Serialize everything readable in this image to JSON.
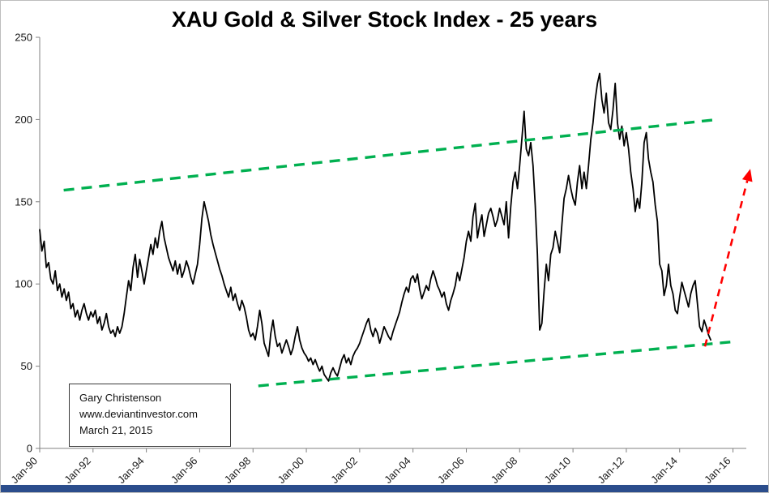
{
  "colors": {
    "series_line": "#000000",
    "trend_green": "#00B050",
    "arrow_red": "#FF0000",
    "axis_gray": "#808080",
    "tick_text": "#1a1a1a",
    "footer_bar": "#2b4d8c"
  },
  "annotation": {
    "lines": [
      "Gary Christenson",
      "www.deviantinvestor.com",
      "March 21, 2015"
    ]
  },
  "chart_data": {
    "type": "line",
    "title": "XAU Gold & Silver Stock Index - 25 years",
    "xlabel": "",
    "ylabel": "",
    "xlim": [
      1990,
      2016.5
    ],
    "ylim": [
      0,
      250
    ],
    "grid": false,
    "legend": false,
    "yticks": [
      0,
      50,
      100,
      150,
      200,
      250
    ],
    "xticks": [
      {
        "year": 1990,
        "label": "Jan-90"
      },
      {
        "year": 1992,
        "label": "Jan-92"
      },
      {
        "year": 1994,
        "label": "Jan-94"
      },
      {
        "year": 1996,
        "label": "Jan-96"
      },
      {
        "year": 1998,
        "label": "Jan-98"
      },
      {
        "year": 2000,
        "label": "Jan-00"
      },
      {
        "year": 2002,
        "label": "Jan-02"
      },
      {
        "year": 2004,
        "label": "Jan-04"
      },
      {
        "year": 2006,
        "label": "Jan-06"
      },
      {
        "year": 2008,
        "label": "Jan-08"
      },
      {
        "year": 2010,
        "label": "Jan-10"
      },
      {
        "year": 2012,
        "label": "Jan-12"
      },
      {
        "year": 2014,
        "label": "Jan-14"
      },
      {
        "year": 2016,
        "label": "Jan-16"
      }
    ],
    "x_start_year": 1990,
    "x_step_months": 1,
    "series": [
      {
        "name": "XAU Index",
        "color": "#000000",
        "monthly_values": [
          133,
          120,
          126,
          110,
          113,
          103,
          100,
          108,
          96,
          100,
          92,
          97,
          90,
          95,
          85,
          88,
          80,
          84,
          78,
          84,
          88,
          82,
          78,
          83,
          80,
          84,
          76,
          80,
          72,
          76,
          82,
          74,
          70,
          72,
          68,
          74,
          70,
          74,
          82,
          92,
          102,
          96,
          110,
          118,
          104,
          115,
          108,
          100,
          108,
          116,
          124,
          118,
          128,
          122,
          132,
          138,
          128,
          122,
          116,
          112,
          108,
          114,
          106,
          112,
          104,
          108,
          114,
          110,
          104,
          100,
          106,
          112,
          124,
          140,
          150,
          144,
          138,
          130,
          124,
          119,
          114,
          109,
          105,
          100,
          96,
          92,
          98,
          90,
          94,
          88,
          84,
          90,
          86,
          80,
          72,
          68,
          70,
          66,
          74,
          84,
          76,
          64,
          60,
          56,
          70,
          78,
          68,
          62,
          64,
          58,
          62,
          66,
          62,
          57,
          61,
          68,
          74,
          66,
          61,
          58,
          56,
          53,
          55,
          51,
          54,
          50,
          47,
          50,
          45,
          43,
          41,
          46,
          49,
          46,
          44,
          49,
          54,
          57,
          52,
          55,
          51,
          56,
          59,
          61,
          64,
          68,
          72,
          76,
          79,
          72,
          68,
          73,
          70,
          64,
          69,
          74,
          71,
          68,
          66,
          71,
          75,
          79,
          83,
          89,
          94,
          98,
          95,
          103,
          105,
          101,
          106,
          97,
          91,
          95,
          99,
          96,
          103,
          108,
          104,
          99,
          96,
          92,
          95,
          88,
          84,
          90,
          94,
          99,
          107,
          102,
          109,
          116,
          126,
          132,
          126,
          141,
          149,
          128,
          136,
          142,
          129,
          136,
          143,
          146,
          141,
          135,
          139,
          146,
          141,
          136,
          150,
          128,
          147,
          162,
          168,
          158,
          172,
          188,
          205,
          182,
          178,
          186,
          172,
          148,
          118,
          72,
          76,
          96,
          112,
          102,
          118,
          122,
          132,
          126,
          119,
          136,
          152,
          158,
          166,
          158,
          152,
          148,
          162,
          172,
          158,
          168,
          158,
          172,
          188,
          198,
          212,
          222,
          228,
          212,
          204,
          216,
          198,
          194,
          206,
          222,
          198,
          188,
          196,
          184,
          192,
          182,
          168,
          158,
          144,
          152,
          146,
          162,
          186,
          192,
          176,
          168,
          162,
          148,
          138,
          112,
          108,
          93,
          99,
          112,
          99,
          94,
          84,
          82,
          92,
          101,
          96,
          91,
          86,
          94,
          99,
          102,
          88,
          74,
          71,
          78,
          74,
          69,
          66
        ]
      }
    ],
    "trendlines": [
      {
        "name": "upper-channel",
        "color": "#00B050",
        "style": "dashed",
        "from": [
          1990.9,
          157
        ],
        "to": [
          2015.4,
          200
        ]
      },
      {
        "name": "lower-channel",
        "color": "#00B050",
        "style": "dashed",
        "from": [
          1998.2,
          38
        ],
        "to": [
          2016.1,
          65
        ]
      }
    ],
    "projection_arrow": {
      "name": "projected-rise",
      "color": "#FF0000",
      "style": "dashed",
      "from": [
        2014.95,
        62
      ],
      "to": [
        2016.65,
        170
      ]
    }
  }
}
